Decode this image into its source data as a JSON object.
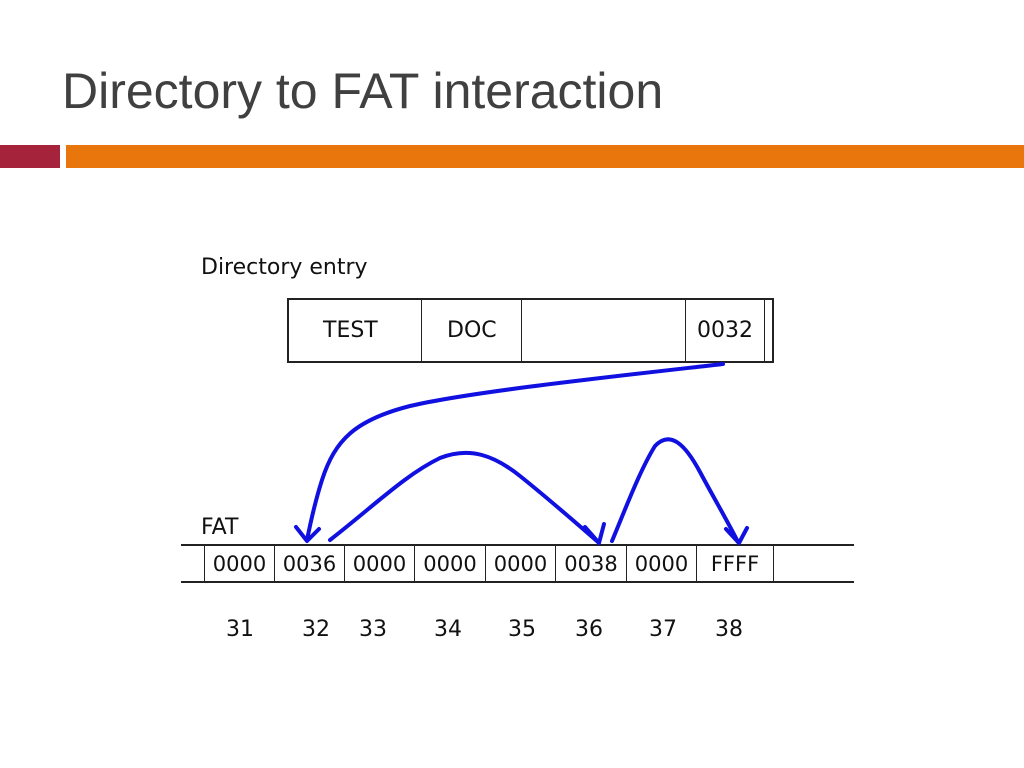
{
  "slide": {
    "title": "Directory to FAT interaction"
  },
  "diagram": {
    "directory_label": "Directory entry",
    "entry": {
      "name": "TEST",
      "extension": "DOC",
      "blank": "",
      "first_cluster": "0032"
    },
    "fat_label": "FAT",
    "fat_cells": [
      "0000",
      "0036",
      "0000",
      "0000",
      "0000",
      "0038",
      "0000",
      "FFFF"
    ],
    "cluster_numbers": [
      "31",
      "32",
      "33",
      "34",
      "35",
      "36",
      "37",
      "38"
    ],
    "colors": {
      "title": "#404040",
      "accent_bar": "#A5243B",
      "main_bar": "#E8760D",
      "arrows": "#1010E0"
    }
  }
}
